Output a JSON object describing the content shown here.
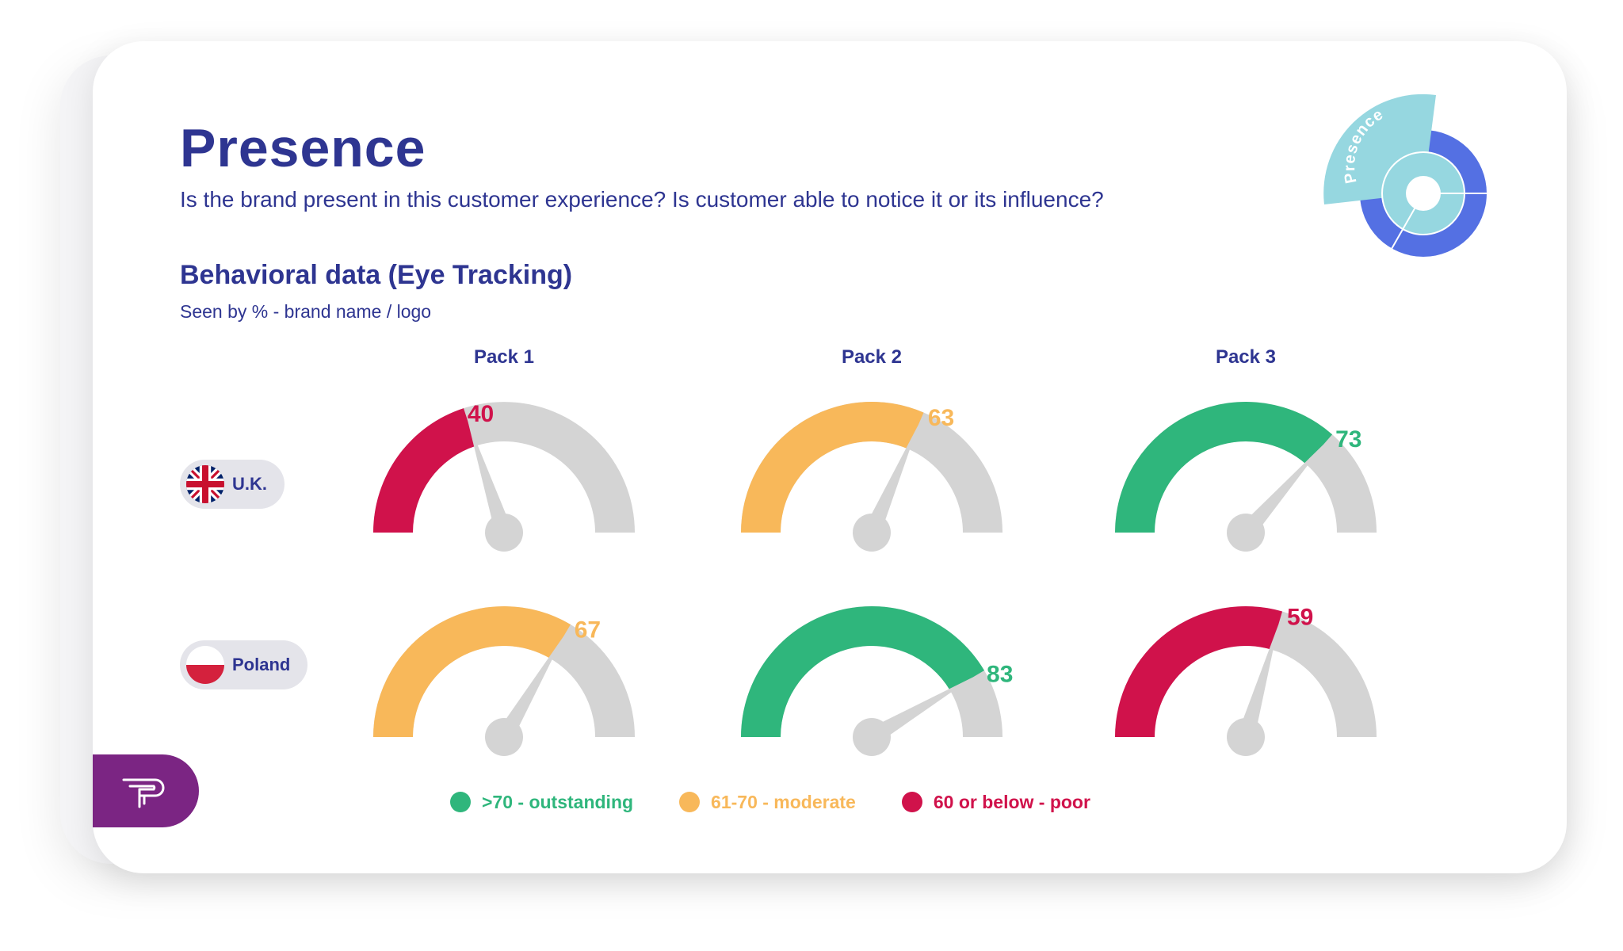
{
  "header": {
    "title": "Presence",
    "subtitle": "Is the brand present in this customer experience? Is customer able to notice it or its influence?"
  },
  "section": {
    "title": "Behavioral data (Eye Tracking)",
    "subtitle": "Seen by % - brand name / logo"
  },
  "badge": {
    "label": "Presence"
  },
  "countries": [
    {
      "name": "U.K.",
      "flag": "uk-flag-icon"
    },
    {
      "name": "Poland",
      "flag": "poland-flag-icon"
    }
  ],
  "chart_data": {
    "type": "gauge",
    "categories": [
      "Pack 1",
      "Pack 2",
      "Pack 3"
    ],
    "ylim": [
      0,
      100
    ],
    "series": [
      {
        "name": "U.K.",
        "values": [
          40,
          63,
          73
        ]
      },
      {
        "name": "Poland",
        "values": [
          67,
          83,
          59
        ]
      }
    ],
    "thresholds": [
      {
        "label": ">70 - outstanding",
        "color": "#2fb67c"
      },
      {
        "label": "61-70 - moderate",
        "color": "#f8b85a"
      },
      {
        "label": "60 or below - poor",
        "color": "#d0124b"
      }
    ],
    "track_color": "#d4d4d4",
    "needle_color": "#d4d4d4"
  },
  "colors": {
    "title": "#2e3591",
    "badge_light": "#96d7e0",
    "badge_dark": "#5470e3",
    "logo_bg": "#7b2583"
  }
}
